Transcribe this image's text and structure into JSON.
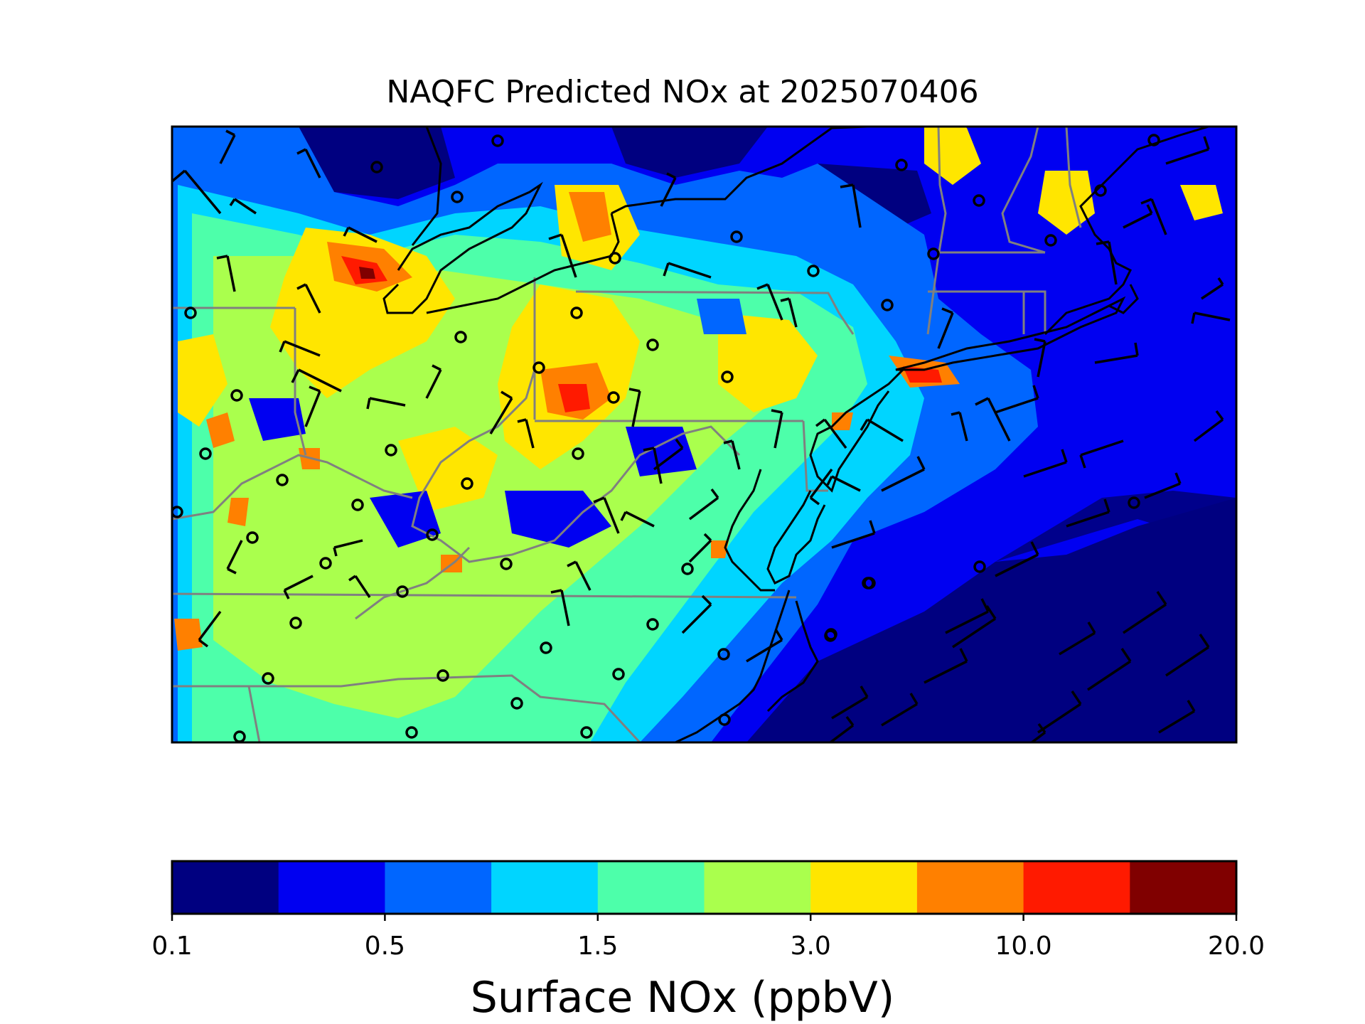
{
  "title": "NAQFC Predicted NOx at 2025070406",
  "colorbar": {
    "label": "Surface NOx (ppbV)",
    "ticks": [
      "0.1",
      "0.5",
      "1.5",
      "3.0",
      "10.0",
      "20.0"
    ],
    "colors": [
      "#000080",
      "#0000f1",
      "#0066ff",
      "#00d5ff",
      "#4dffaa",
      "#aaff4d",
      "#ffe600",
      "#ff8000",
      "#ff1a00",
      "#800000"
    ]
  },
  "map": {
    "region": "Mid-Atlantic / Northeast United States",
    "features": [
      "NOx concentration field",
      "wind barbs",
      "calm-wind circles",
      "state boundaries",
      "coastlines"
    ]
  }
}
